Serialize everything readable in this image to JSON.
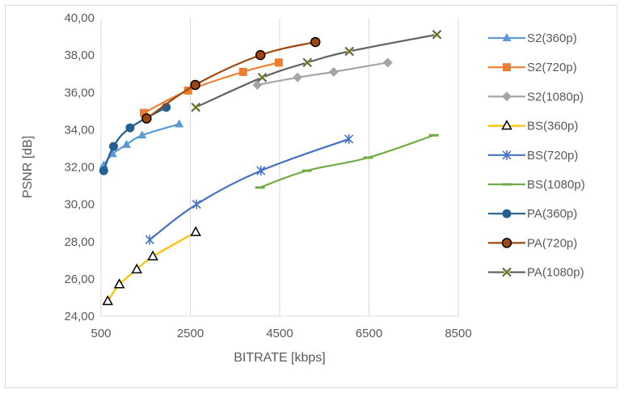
{
  "chart_data": {
    "type": "line",
    "xlabel": "BITRATE [kbps]",
    "ylabel": "PSNR [dB]",
    "xlim": [
      500,
      8500
    ],
    "ylim": [
      24,
      40
    ],
    "x_ticks": [
      "500",
      "2500",
      "4500",
      "6500",
      "8500"
    ],
    "y_ticks": [
      "24,00",
      "26,00",
      "28,00",
      "30,00",
      "32,00",
      "34,00",
      "36,00",
      "38,00",
      "40,00"
    ],
    "grid": "vertical",
    "legend_position": "right",
    "series": [
      {
        "name": "S2(360p)",
        "color": "#5b9bd5",
        "marker": "triangle",
        "x": [
          560,
          760,
          1070,
          1420,
          2250
        ],
        "y": [
          32.1,
          32.7,
          33.2,
          33.7,
          34.3
        ]
      },
      {
        "name": "S2(720p)",
        "color": "#ed7d31",
        "marker": "square",
        "x": [
          1460,
          2450,
          3680,
          4480
        ],
        "y": [
          34.9,
          36.1,
          37.1,
          37.6
        ]
      },
      {
        "name": "S2(1080p)",
        "color": "#a5a5a5",
        "marker": "diamond",
        "x": [
          4000,
          4900,
          5710,
          6920
        ],
        "y": [
          36.4,
          36.8,
          37.1,
          37.6
        ]
      },
      {
        "name": "BS(360p)",
        "color": "#ffc000",
        "marker": "triangle-open",
        "x": [
          650,
          910,
          1300,
          1660,
          2620
        ],
        "y": [
          24.8,
          25.7,
          26.5,
          27.2,
          28.5
        ]
      },
      {
        "name": "BS(720p)",
        "color": "#4472c4",
        "marker": "asterisk",
        "x": [
          1590,
          2640,
          4080,
          6050
        ],
        "y": [
          28.1,
          30.0,
          31.8,
          33.5
        ]
      },
      {
        "name": "BS(1080p)",
        "color": "#70ad47",
        "marker": "dash",
        "x": [
          4060,
          5110,
          6480,
          7950
        ],
        "y": [
          30.9,
          31.8,
          32.5,
          33.7
        ]
      },
      {
        "name": "PA(360p)",
        "color": "#255e91",
        "marker": "circle",
        "x": [
          560,
          780,
          1150,
          1960
        ],
        "y": [
          31.8,
          33.1,
          34.1,
          35.2
        ]
      },
      {
        "name": "PA(720p)",
        "color": "#9e480e",
        "marker": "circle-open",
        "x": [
          1520,
          2610,
          4070,
          5300
        ],
        "y": [
          34.6,
          36.4,
          38.0,
          38.7
        ]
      },
      {
        "name": "PA(1080p)",
        "color": "#636363",
        "marker": "x",
        "x": [
          2620,
          4110,
          5120,
          6060,
          8020
        ],
        "y": [
          35.2,
          36.8,
          37.6,
          38.2,
          39.1
        ]
      }
    ]
  }
}
